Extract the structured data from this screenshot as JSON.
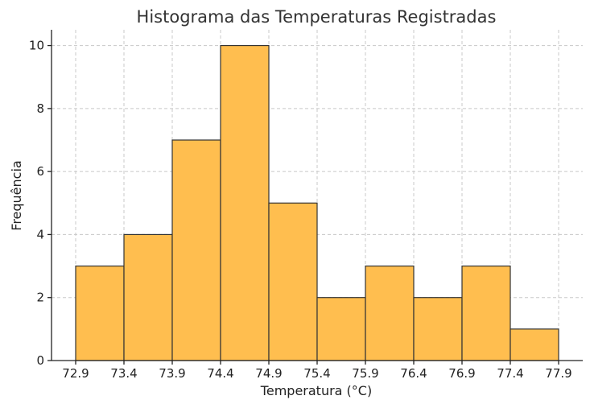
{
  "chart_data": {
    "type": "bar",
    "title": "Histograma das Temperaturas Registradas",
    "xlabel": "Temperatura (°C)",
    "ylabel": "Frequência",
    "bin_edges": [
      72.9,
      73.4,
      73.9,
      74.4,
      74.9,
      75.4,
      75.9,
      76.4,
      76.9,
      77.4,
      77.9
    ],
    "x_tick_labels": [
      "72.9",
      "73.4",
      "73.9",
      "74.4",
      "74.9",
      "75.4",
      "75.9",
      "76.4",
      "76.9",
      "77.4",
      "77.9"
    ],
    "values": [
      3,
      4,
      7,
      10,
      5,
      2,
      3,
      2,
      3,
      1
    ],
    "y_ticks": [
      0,
      2,
      4,
      6,
      8,
      10
    ],
    "ylim": [
      0,
      10.5
    ],
    "xlim": [
      72.65,
      78.15
    ],
    "grid": true,
    "bar_color": "#ffbe4f",
    "edge_color": "#333333"
  }
}
